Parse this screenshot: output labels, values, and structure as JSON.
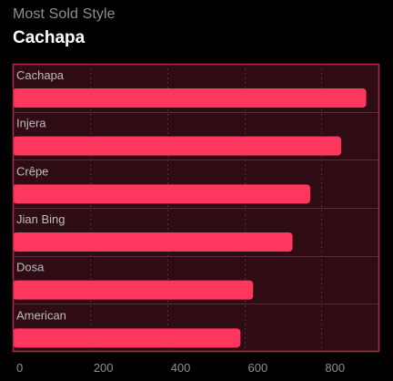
{
  "header": {
    "subtitle": "Most Sold Style",
    "title": "Cachapa"
  },
  "colors": {
    "bar": "#ff375f",
    "plot_background": "#2f0c13",
    "plot_border": "#b32a44",
    "grid": "#5e2a33",
    "row_label": "#bdbdbd",
    "tick_label": "#8e8e93"
  },
  "chart_data": {
    "type": "bar",
    "orientation": "horizontal",
    "title": "Cachapa",
    "subtitle": "Most Sold Style",
    "categories": [
      "Cachapa",
      "Injera",
      "Crêpe",
      "Jian Bing",
      "Dosa",
      "American"
    ],
    "values": [
      916,
      851,
      771,
      725,
      623,
      590
    ],
    "xlim": [
      0,
      950
    ],
    "xticks": [
      0,
      200,
      400,
      600,
      800
    ],
    "grid": true,
    "legend": "none"
  }
}
